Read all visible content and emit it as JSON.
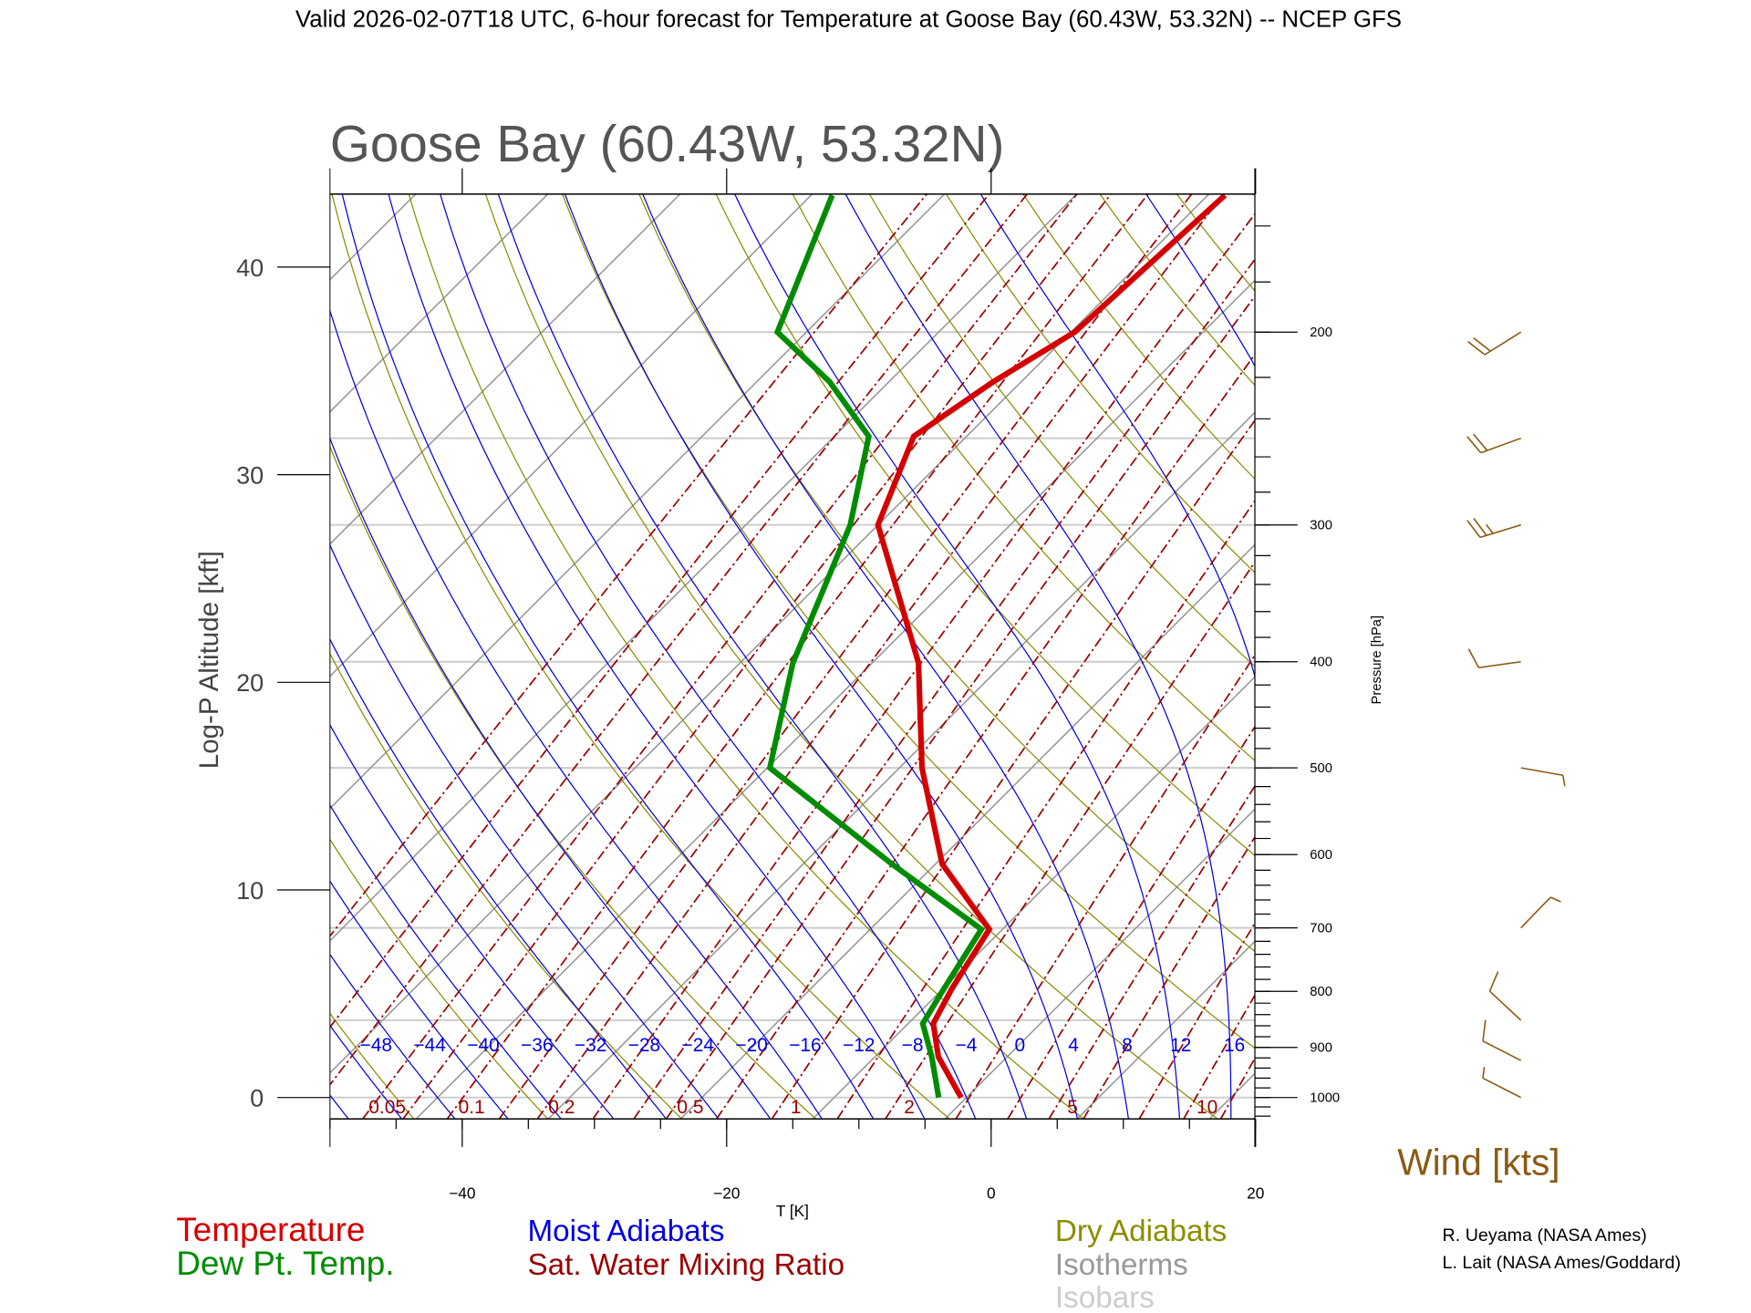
{
  "header": {
    "title": "Valid 2026-02-07T18 UTC, 6-hour forecast for Temperature at Goose Bay (60.43W, 53.32N) -- NCEP GFS"
  },
  "chart_data": {
    "type": "skew-t",
    "title": "Goose Bay (60.43W, 53.32N)",
    "xlabel": "T [K]",
    "ylabel": "Log-P Altitude [kft]",
    "y2label": "Pressure [hPa]",
    "xlim": [
      -50,
      20
    ],
    "x_ticks": [
      -40,
      -20,
      0,
      20
    ],
    "x_tick_labels": [
      "−40",
      "−20",
      "0",
      "20"
    ],
    "altitude_ticks_kft": [
      0,
      10,
      20,
      30,
      40
    ],
    "altitude_tick_labels": [
      "0",
      "10",
      "20",
      "30",
      "40"
    ],
    "pressure_ticks": [
      1000,
      900,
      800,
      700,
      600,
      500,
      400,
      300,
      200
    ],
    "pressure_tick_labels": [
      "1000",
      "900",
      "800",
      "700",
      "600",
      "500",
      "400",
      "300",
      "200"
    ],
    "isobars_hpa": [
      1000,
      850,
      700,
      500,
      400,
      300,
      250,
      200
    ],
    "moist_adiabat_labels": [
      "−48",
      "−44",
      "−40",
      "−36",
      "−32",
      "−28",
      "−24",
      "−20",
      "−16",
      "−12",
      "−8",
      "−4",
      "0",
      "4",
      "8",
      "12",
      "16"
    ],
    "moist_adiabat_values": [
      -48,
      -44,
      -40,
      -36,
      -32,
      -28,
      -24,
      -20,
      -16,
      -12,
      -8,
      -4,
      0,
      4,
      8,
      12,
      16
    ],
    "mixing_ratio_labels": [
      "0.05",
      "0.1",
      "0.2",
      "0.5",
      "1",
      "2",
      "5",
      "10"
    ],
    "mixing_ratio_values": [
      0.05,
      0.1,
      0.2,
      0.5,
      1,
      2,
      5,
      10
    ],
    "profile": [
      {
        "p": 1000,
        "t": -0.4,
        "td": -2.1
      },
      {
        "p": 918,
        "t": -5.2,
        "td": -5.7
      },
      {
        "p": 856,
        "t": -8.1,
        "td": -8.9
      },
      {
        "p": 797,
        "t": -9.3,
        "td": -9.9
      },
      {
        "p": 702,
        "t": -11.0,
        "td": -11.6
      },
      {
        "p": 612,
        "t": -19.5,
        "td": -23.3
      },
      {
        "p": 500,
        "t": -28.3,
        "td": -39.8
      },
      {
        "p": 401,
        "t": -36.5,
        "td": -46.0
      },
      {
        "p": 300,
        "t": -50.0,
        "td": -52.1
      },
      {
        "p": 249,
        "t": -54.0,
        "td": -57.4
      },
      {
        "p": 222,
        "t": -52.1,
        "td": -64.5
      },
      {
        "p": 200,
        "t": -49.7,
        "td": -72.2
      },
      {
        "p": 150,
        "t": -48.7,
        "td": -78.4
      }
    ],
    "wind": [
      {
        "p": 200,
        "dir": 238,
        "speed": 20
      },
      {
        "p": 250,
        "dir": 250,
        "speed": 20
      },
      {
        "p": 300,
        "dir": 253,
        "speed": 25
      },
      {
        "p": 400,
        "dir": 262,
        "speed": 10
      },
      {
        "p": 500,
        "dir": 100,
        "speed": 5
      },
      {
        "p": 700,
        "dir": 44,
        "speed": 5
      },
      {
        "p": 850,
        "dir": 313,
        "speed": 10
      },
      {
        "p": 925,
        "dir": 297,
        "speed": 10
      },
      {
        "p": 1000,
        "dir": 297,
        "speed": 5
      }
    ],
    "wind_label": "Wind [kts]",
    "legend": {
      "temperature": "Temperature",
      "dewpoint": "Dew Pt. Temp.",
      "moist_adiabats": "Moist Adiabats",
      "mixing_ratio": "Sat. Water Mixing Ratio",
      "dry_adiabats": "Dry Adiabats",
      "isotherms": "Isotherms",
      "isobars": "Isobars"
    },
    "colors": {
      "temperature": "#d40000",
      "dewpoint": "#008c00",
      "moist": "#0000e0",
      "mixing": "#9a0000",
      "dry": "#8c8c00",
      "isotherm": "#999999",
      "isobar": "#cccccc",
      "wind": "#8b5a14"
    }
  },
  "credits": {
    "line1": "R. Ueyama (NASA Ames)",
    "line2": "L. Lait (NASA Ames/Goddard)"
  }
}
